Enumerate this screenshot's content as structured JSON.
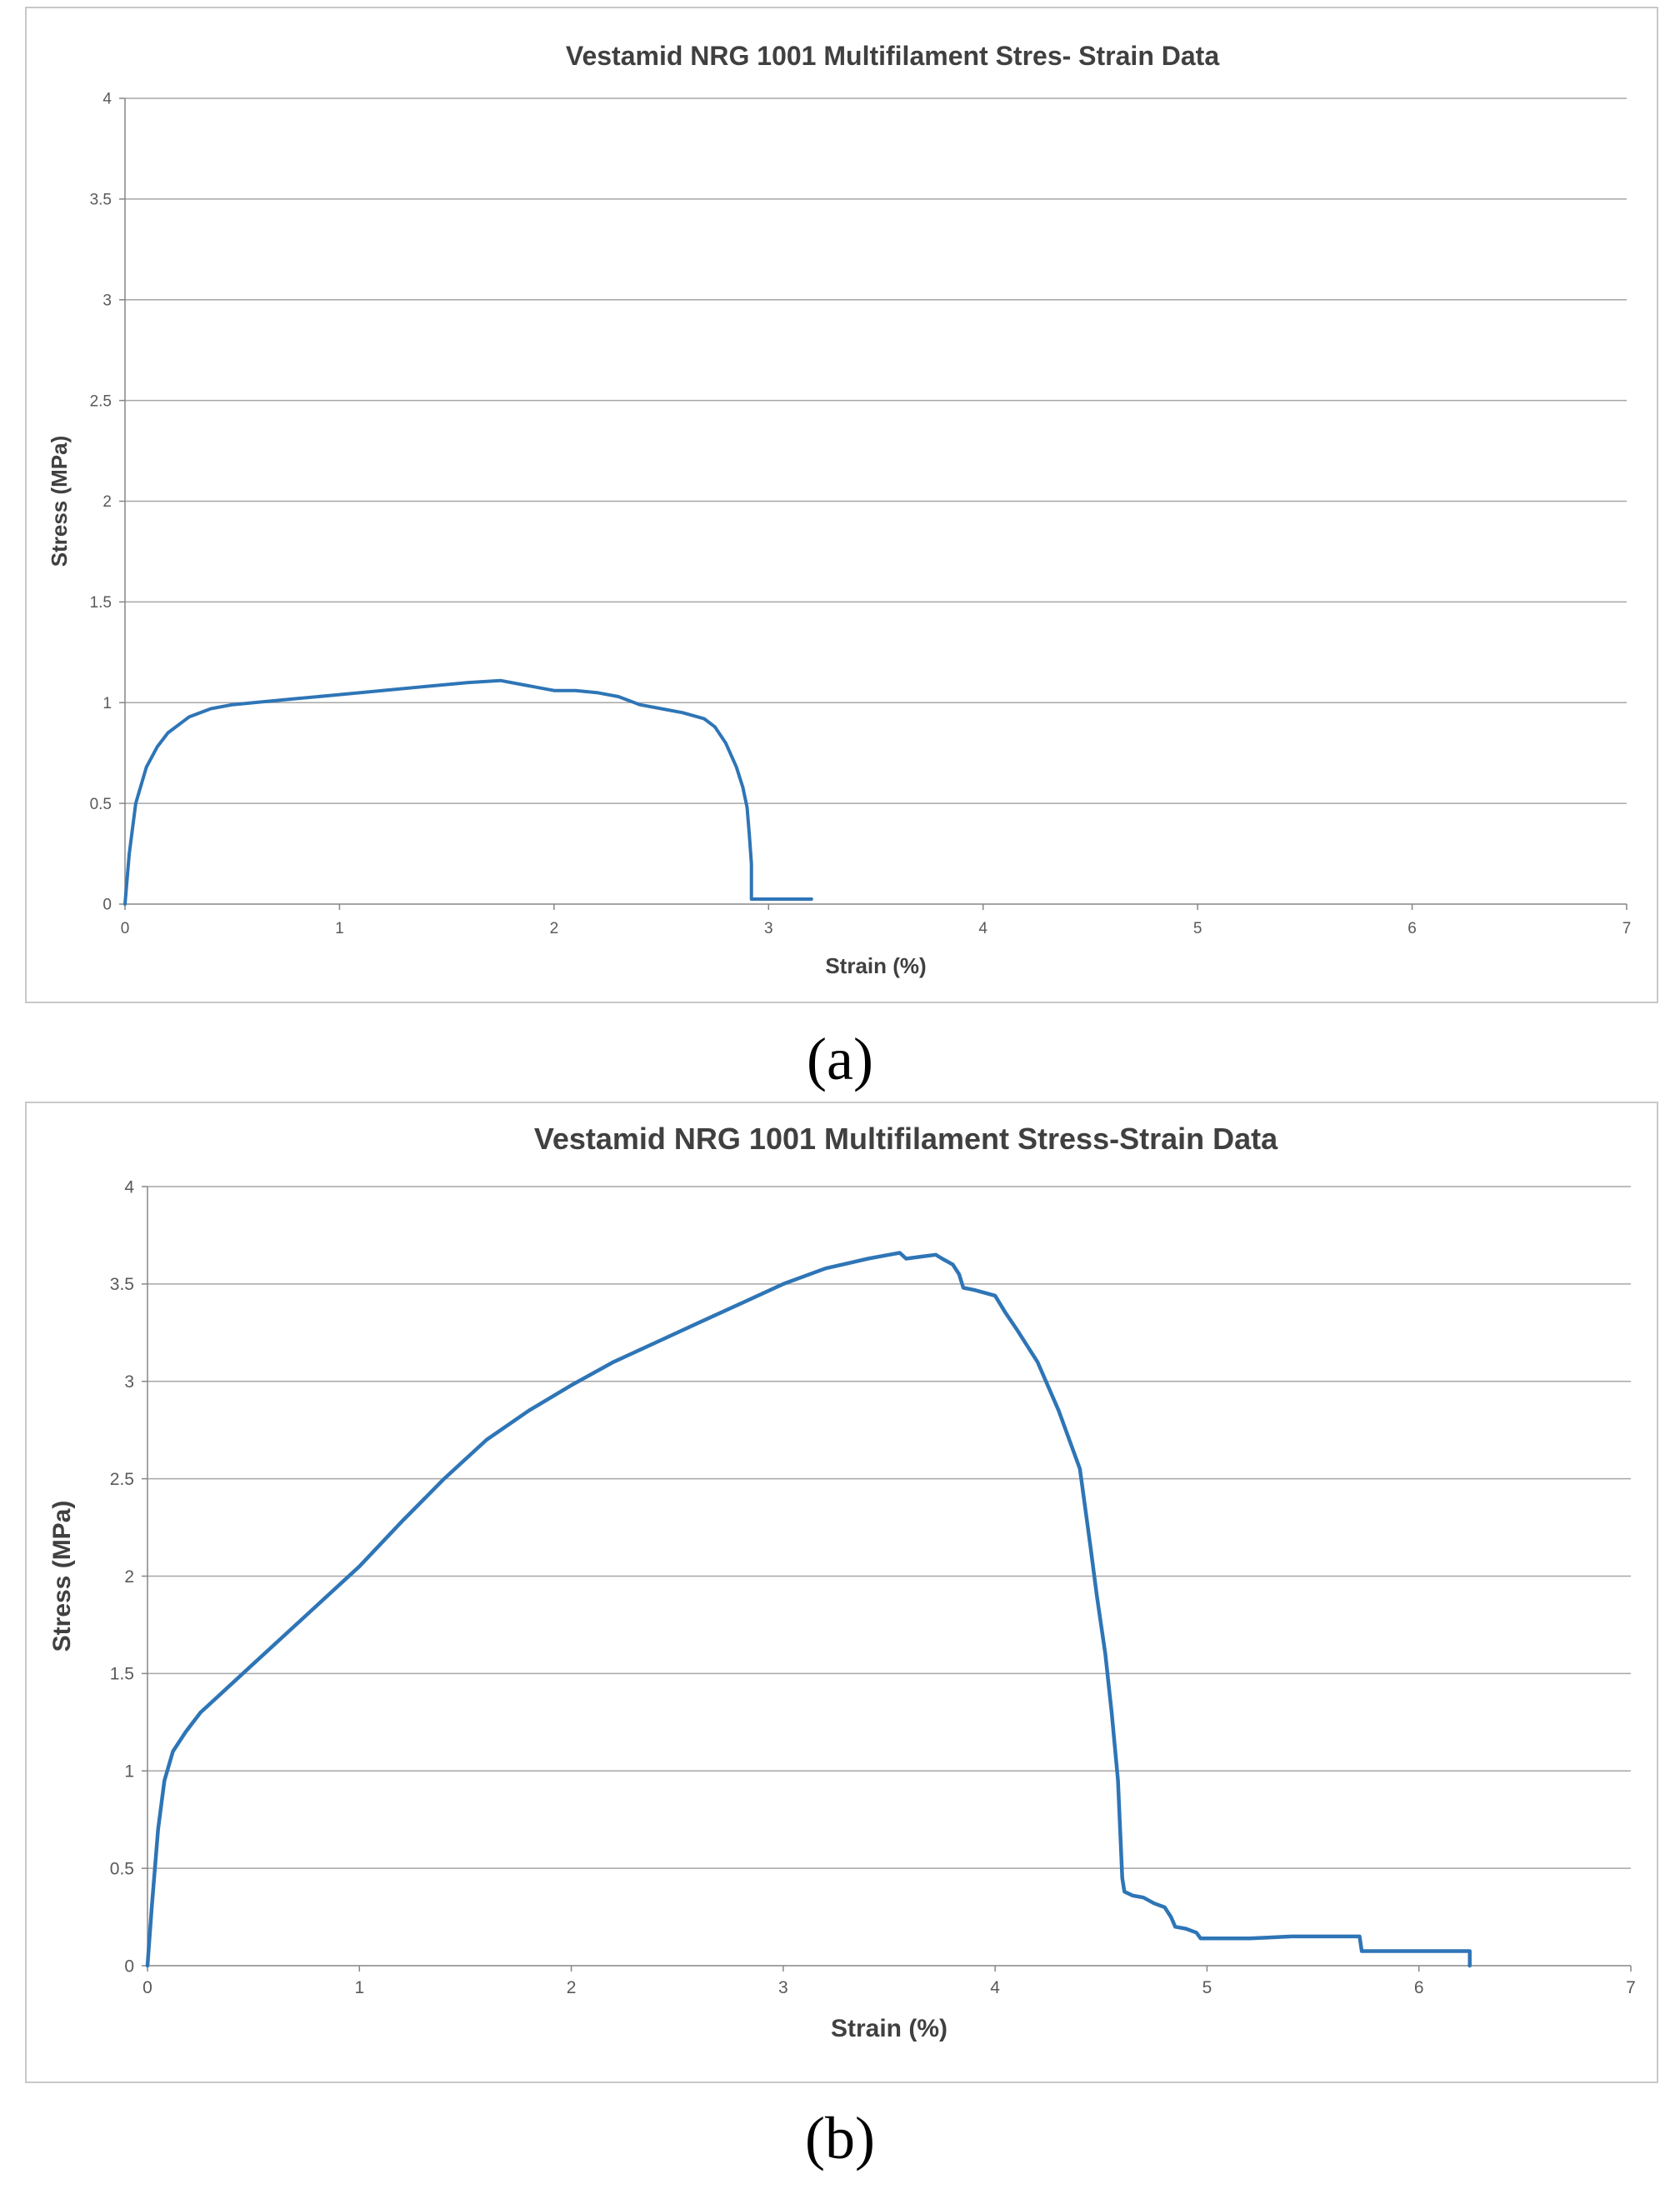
{
  "chart_data": [
    {
      "panel": "a",
      "type": "line",
      "title": "Vestamid NRG 1001 Multifilament Stres- Strain Data",
      "xlabel": "Strain (%)",
      "ylabel": "Stress (MPa)",
      "xlim": [
        0,
        7
      ],
      "ylim": [
        0,
        4
      ],
      "xticks": [
        "0",
        "1",
        "2",
        "3",
        "4",
        "5",
        "6",
        "7"
      ],
      "yticks": [
        "0",
        "0.5",
        "1",
        "1.5",
        "2",
        "2.5",
        "3",
        "3.5",
        "4"
      ],
      "grid": true,
      "legend": "none",
      "color": "#2E75B6",
      "series": [
        {
          "x": [
            0,
            0.02,
            0.05,
            0.1,
            0.15,
            0.2,
            0.3,
            0.4,
            0.5,
            0.6,
            0.8,
            1.0,
            1.2,
            1.4,
            1.6,
            1.75,
            1.85,
            1.95,
            2.0,
            2.1,
            2.2,
            2.3,
            2.4,
            2.5,
            2.6,
            2.7,
            2.75,
            2.8,
            2.85,
            2.88,
            2.9,
            2.91,
            2.92,
            2.92,
            3.0,
            3.2
          ],
          "y": [
            0,
            0.25,
            0.5,
            0.68,
            0.78,
            0.85,
            0.93,
            0.97,
            0.99,
            1.0,
            1.02,
            1.04,
            1.06,
            1.08,
            1.1,
            1.11,
            1.09,
            1.07,
            1.06,
            1.06,
            1.05,
            1.03,
            0.99,
            0.97,
            0.95,
            0.92,
            0.88,
            0.8,
            0.68,
            0.58,
            0.48,
            0.35,
            0.2,
            0.025,
            0.025,
            0.025
          ]
        }
      ]
    },
    {
      "panel": "b",
      "type": "line",
      "title": "Vestamid NRG 1001 Multifilament Stress-Strain Data",
      "xlabel": "Strain (%)",
      "ylabel": "Stress (MPa)",
      "xlim": [
        0,
        7
      ],
      "ylim": [
        0,
        4
      ],
      "xticks": [
        "0",
        "1",
        "2",
        "3",
        "4",
        "5",
        "6",
        "7"
      ],
      "yticks": [
        "0",
        "0.5",
        "1",
        "1.5",
        "2",
        "2.5",
        "3",
        "3.5",
        "4"
      ],
      "grid": true,
      "legend": "none",
      "color": "#2E75B6",
      "series": [
        {
          "x": [
            0,
            0.02,
            0.05,
            0.08,
            0.12,
            0.18,
            0.25,
            0.35,
            0.5,
            0.65,
            0.8,
            1.0,
            1.2,
            1.4,
            1.6,
            1.8,
            2.0,
            2.2,
            2.4,
            2.6,
            2.8,
            3.0,
            3.2,
            3.4,
            3.5,
            3.55,
            3.58,
            3.65,
            3.72,
            3.75,
            3.8,
            3.83,
            3.85,
            3.9,
            4.0,
            4.05,
            4.1,
            4.2,
            4.3,
            4.4,
            4.45,
            4.48,
            4.52,
            4.55,
            4.58,
            4.6,
            4.61,
            4.65,
            4.7,
            4.75,
            4.8,
            4.83,
            4.85,
            4.9,
            4.95,
            4.97,
            5.0,
            5.2,
            5.4,
            5.6,
            5.72,
            5.73,
            6.0,
            6.24,
            6.24
          ],
          "y": [
            0,
            0.3,
            0.7,
            0.95,
            1.1,
            1.2,
            1.3,
            1.4,
            1.55,
            1.7,
            1.85,
            2.05,
            2.28,
            2.5,
            2.7,
            2.85,
            2.98,
            3.1,
            3.2,
            3.3,
            3.4,
            3.5,
            3.58,
            3.63,
            3.65,
            3.66,
            3.63,
            3.64,
            3.65,
            3.63,
            3.6,
            3.55,
            3.48,
            3.47,
            3.44,
            3.35,
            3.27,
            3.1,
            2.85,
            2.55,
            2.15,
            1.9,
            1.6,
            1.3,
            0.95,
            0.45,
            0.38,
            0.36,
            0.35,
            0.32,
            0.3,
            0.25,
            0.2,
            0.19,
            0.17,
            0.14,
            0.14,
            0.14,
            0.15,
            0.15,
            0.15,
            0.075,
            0.075,
            0.075,
            0
          ]
        }
      ]
    }
  ],
  "captions": {
    "a": "(a)",
    "b": "(b)"
  }
}
